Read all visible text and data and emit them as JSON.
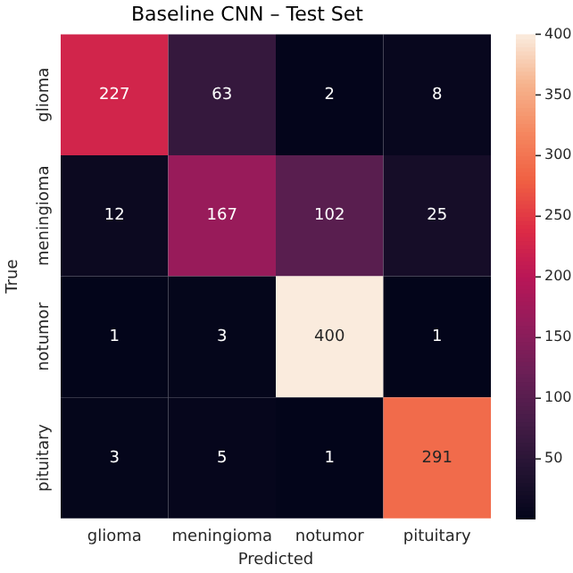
{
  "chart_data": {
    "type": "heatmap",
    "title": "Baseline CNN – Test Set",
    "xlabel": "Predicted",
    "ylabel": "True",
    "categories": [
      "glioma",
      "meningioma",
      "notumor",
      "pituitary"
    ],
    "y_categories": [
      "glioma",
      "meningioma",
      "notumor",
      "pituitary"
    ],
    "cells": [
      [
        227,
        63,
        2,
        8
      ],
      [
        12,
        167,
        102,
        25
      ],
      [
        1,
        3,
        400,
        1
      ],
      [
        3,
        5,
        1,
        291
      ]
    ],
    "clim": [
      1,
      400
    ],
    "cticks": [
      50,
      100,
      150,
      200,
      250,
      300,
      350,
      400
    ],
    "data_labels": true
  }
}
